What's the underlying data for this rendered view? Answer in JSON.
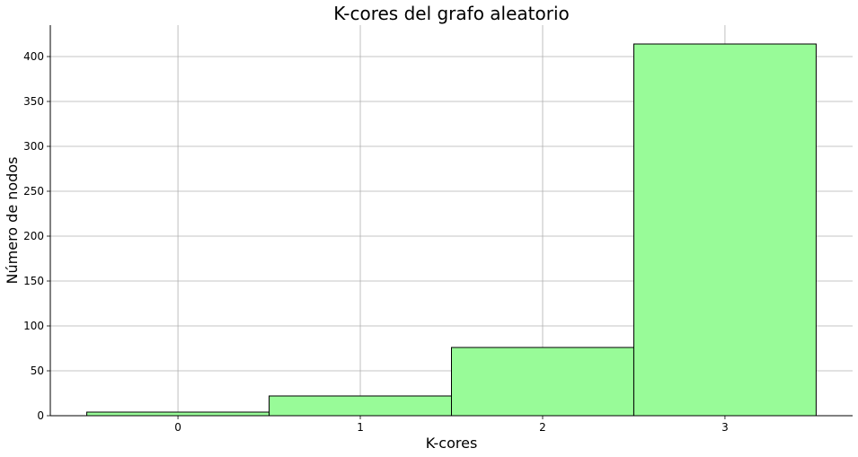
{
  "chart_data": {
    "type": "bar",
    "title": "K-cores del grafo aleatorio",
    "xlabel": "K-cores",
    "ylabel": "Número de nodos",
    "categories": [
      "0",
      "1",
      "2",
      "3"
    ],
    "x": [
      0,
      1,
      2,
      3
    ],
    "values": [
      4,
      22,
      76,
      414
    ],
    "bar_width": 1,
    "xlim": [
      -0.7,
      3.7
    ],
    "ylim": [
      0,
      435
    ],
    "yticks": [
      0,
      50,
      100,
      150,
      200,
      250,
      300,
      350,
      400
    ],
    "grid": true,
    "colors": {
      "bar_fill": "#98fb98",
      "bar_edge": "#000000",
      "grid": "#b0b0b0"
    }
  }
}
